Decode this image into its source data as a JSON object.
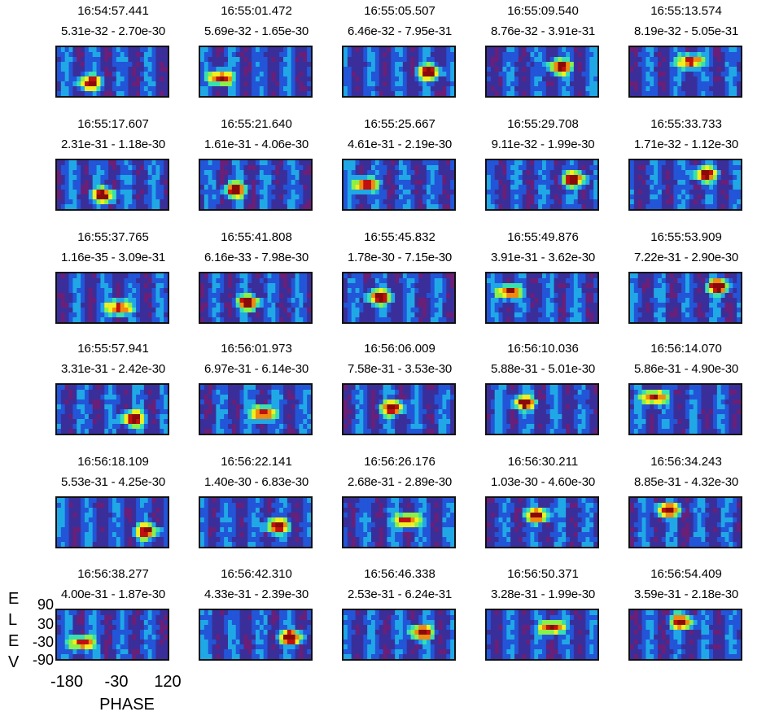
{
  "chart_data": {
    "type": "heatmap",
    "xlabel": "PHASE",
    "ylabel": "ELEV",
    "xticks": [
      "-180",
      "-30",
      "120"
    ],
    "yticks": [
      "90",
      "30",
      "-30",
      "-90"
    ],
    "panels": [
      {
        "time": "16:54:57.441",
        "range": "5.31e-32 - 2.70e-30"
      },
      {
        "time": "16:55:01.472",
        "range": "5.69e-32 - 1.65e-30"
      },
      {
        "time": "16:55:05.507",
        "range": "6.46e-32 - 7.95e-31"
      },
      {
        "time": "16:55:09.540",
        "range": "8.76e-32 - 3.91e-31"
      },
      {
        "time": "16:55:13.574",
        "range": "8.19e-32 - 5.05e-31"
      },
      {
        "time": "16:55:17.607",
        "range": "2.31e-31 - 1.18e-30"
      },
      {
        "time": "16:55:21.640",
        "range": "1.61e-31 - 4.06e-30"
      },
      {
        "time": "16:55:25.667",
        "range": "4.61e-31 - 2.19e-30"
      },
      {
        "time": "16:55:29.708",
        "range": "9.11e-32 - 1.99e-30"
      },
      {
        "time": "16:55:33.733",
        "range": "1.71e-32 - 1.12e-30"
      },
      {
        "time": "16:55:37.765",
        "range": "1.16e-35 - 3.09e-31"
      },
      {
        "time": "16:55:41.808",
        "range": "6.16e-33 - 7.98e-30"
      },
      {
        "time": "16:55:45.832",
        "range": "1.78e-30 - 7.15e-30"
      },
      {
        "time": "16:55:49.876",
        "range": "3.91e-31 - 3.62e-30"
      },
      {
        "time": "16:55:53.909",
        "range": "7.22e-31 - 2.90e-30"
      },
      {
        "time": "16:55:57.941",
        "range": "3.31e-31 - 2.42e-30"
      },
      {
        "time": "16:56:01.973",
        "range": "6.97e-31 - 6.14e-30"
      },
      {
        "time": "16:56:06.009",
        "range": "7.58e-31 - 3.53e-30"
      },
      {
        "time": "16:56:10.036",
        "range": "5.88e-31 - 5.01e-30"
      },
      {
        "time": "16:56:14.070",
        "range": "5.86e-31 - 4.90e-30"
      },
      {
        "time": "16:56:18.109",
        "range": "5.53e-31 - 4.25e-30"
      },
      {
        "time": "16:56:22.141",
        "range": "1.40e-30 - 6.83e-30"
      },
      {
        "time": "16:56:26.176",
        "range": "2.68e-31 - 2.89e-30"
      },
      {
        "time": "16:56:30.211",
        "range": "1.03e-30 - 4.60e-30"
      },
      {
        "time": "16:56:34.243",
        "range": "8.85e-31 - 4.32e-30"
      },
      {
        "time": "16:56:38.277",
        "range": "4.00e-31 - 1.87e-30"
      },
      {
        "time": "16:56:42.310",
        "range": "4.33e-31 - 2.39e-30"
      },
      {
        "time": "16:56:46.338",
        "range": "2.53e-31 - 6.24e-31"
      },
      {
        "time": "16:56:50.371",
        "range": "3.28e-31 - 1.99e-30"
      },
      {
        "time": "16:56:54.409",
        "range": "3.59e-31 - 2.18e-30"
      }
    ]
  },
  "colors": {
    "colormap": [
      "#6a1f78",
      "#3a2f9a",
      "#2255d8",
      "#20a8e6",
      "#38e0b0",
      "#8af04a",
      "#f0f020",
      "#f08a10",
      "#c01010",
      "#8a0a0a"
    ],
    "background": "#ffffff",
    "frame": "#111111"
  }
}
